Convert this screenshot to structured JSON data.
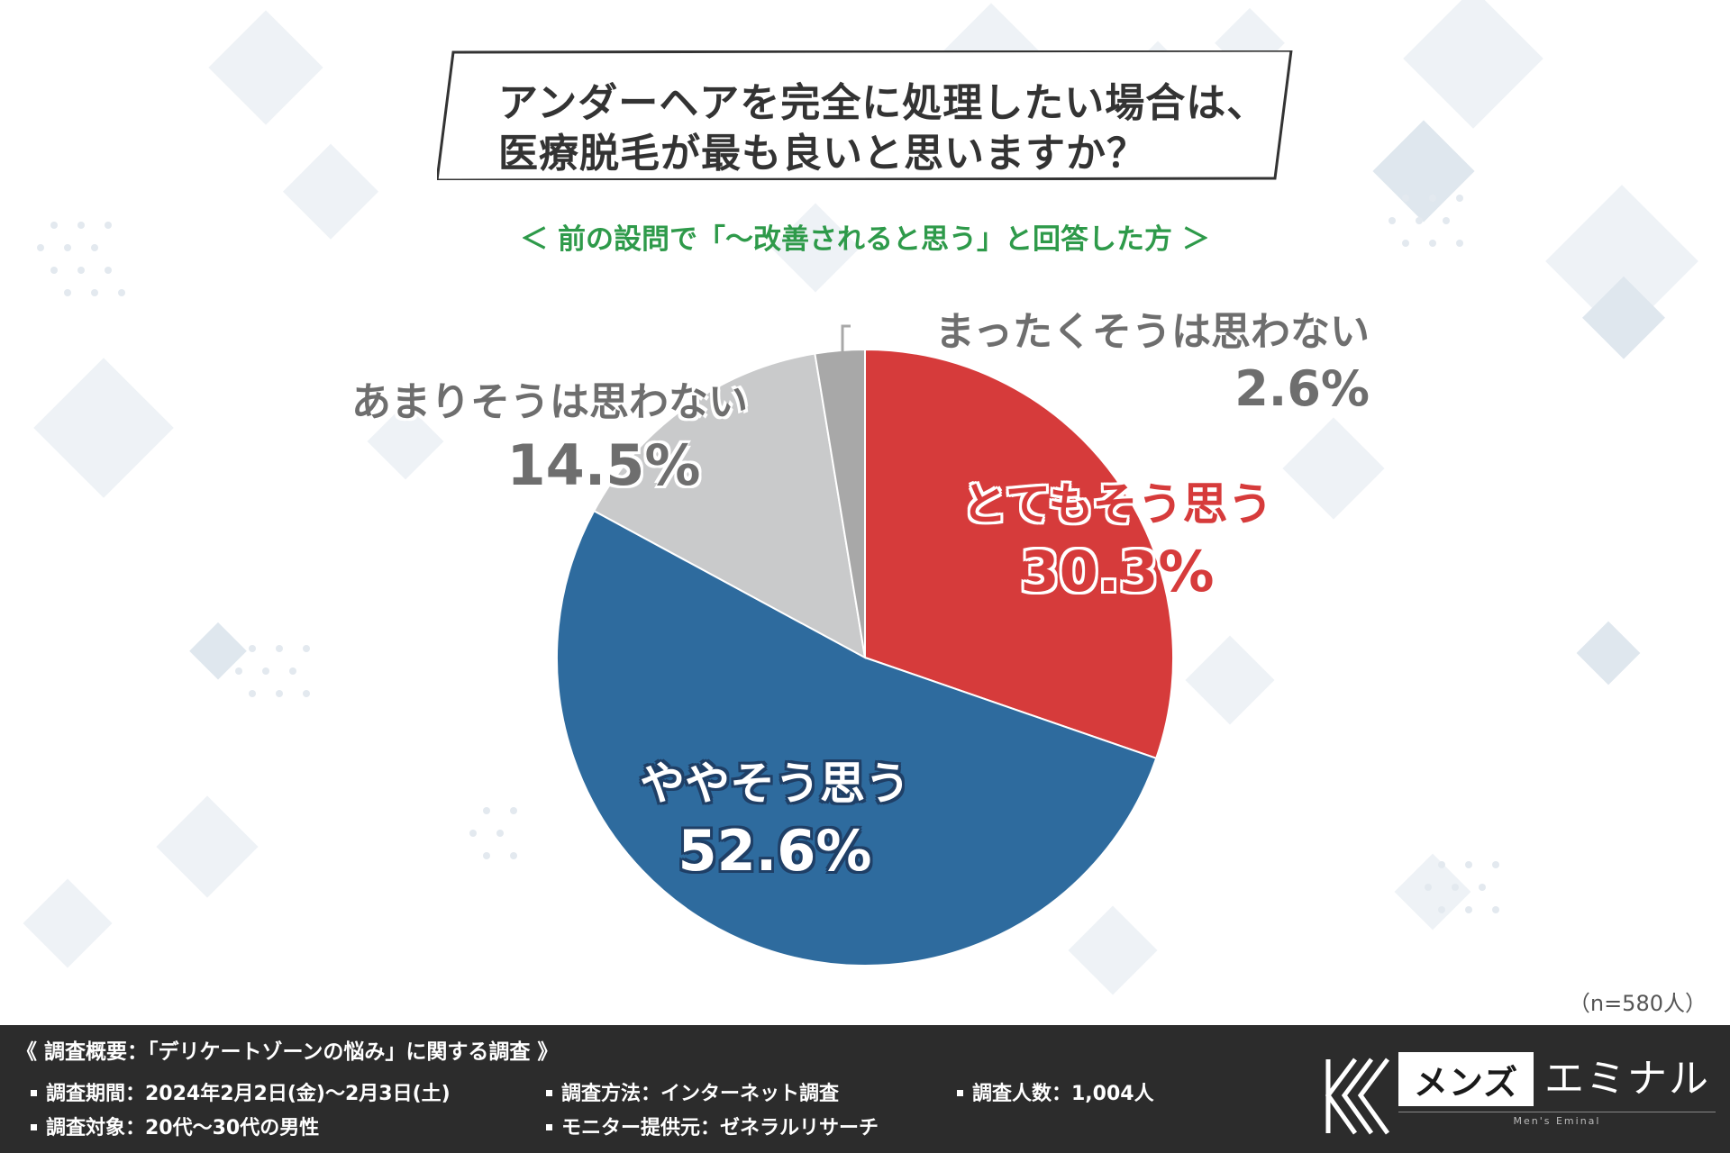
{
  "title": {
    "line1": "アンダーヘアを完全に処理したい場合は、",
    "line2": "医療脱毛が最も良いと思いますか？"
  },
  "subtitle": "＜ 前の設問で「〜改善されると思う」と回答した方 ＞",
  "sample_note": "（n=580人）",
  "colors": {
    "very_agree": "#d63b3b",
    "somewhat_agree": "#2e6b9e",
    "not_really": "#c9cacb",
    "not_at_all": "#a8a8a8",
    "subtitle": "#2e9a4a",
    "footer_bg": "#2c2c2c"
  },
  "chart_data": {
    "type": "pie",
    "title": "アンダーヘアを完全に処理したい場合は、医療脱毛が最も良いと思いますか？",
    "categories": [
      "とてもそう思う",
      "ややそう思う",
      "あまりそうは思わない",
      "まったくそうは思わない"
    ],
    "values": [
      30.3,
      52.6,
      14.5,
      2.6
    ],
    "labels": [
      "30.3%",
      "52.6%",
      "14.5%",
      "2.6%"
    ],
    "start": "12 o'clock",
    "direction": "clockwise"
  },
  "footer": {
    "survey_title": "《 調査概要：「デリケートゾーンの悩み」に関する調査 》",
    "period": "調査期間：2024年2月2日(金)〜2月3日(土)",
    "method": "調査方法：インターネット調査",
    "count": "調査人数：1,004人",
    "target": "調査対象：20代〜30代の男性",
    "provider": "モニター提供元：ゼネラルリサーチ"
  },
  "logo": {
    "box_text": "メンズ",
    "name": "エミナル",
    "sub": "Men's Eminal"
  }
}
